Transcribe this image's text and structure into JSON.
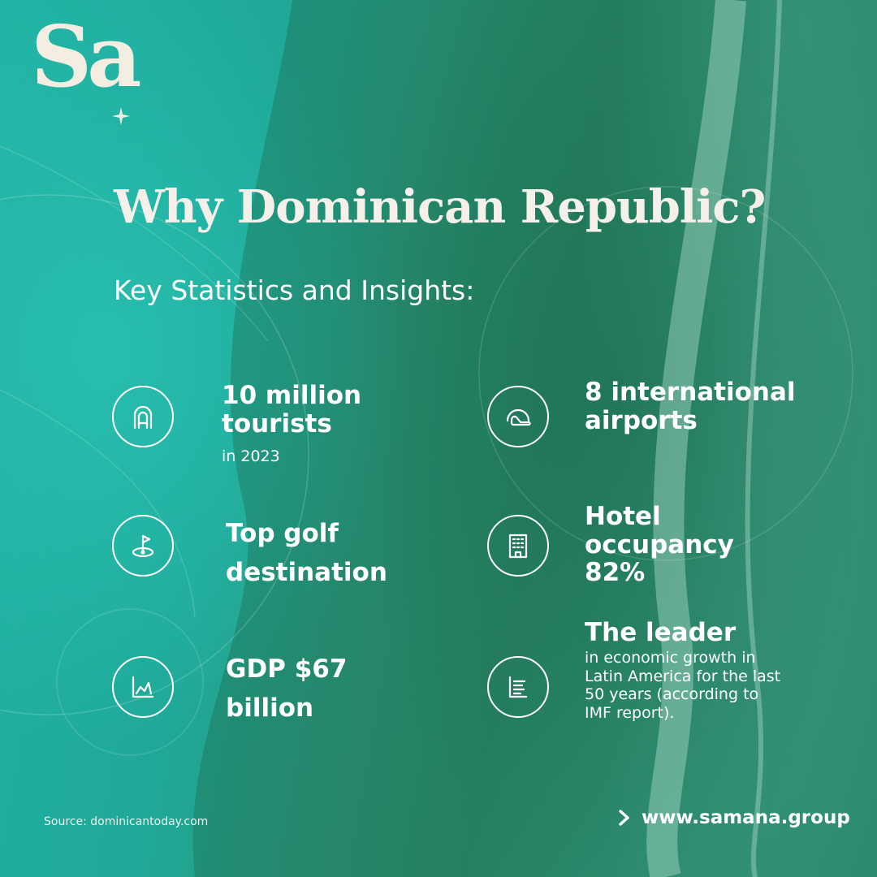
{
  "brand": {
    "logo_text": "Sa",
    "website": "www.samana.group"
  },
  "heading": {
    "title": "Why Dominican Republic?",
    "subtitle": "Key Statistics and Insights:"
  },
  "stats": [
    {
      "icon": "tourist-icon",
      "headline": "10 million tourists",
      "detail": "in 2023"
    },
    {
      "icon": "airplane-icon",
      "headline": "8 international airports"
    },
    {
      "icon": "golf-flag-icon",
      "headline": "Top golf destination"
    },
    {
      "icon": "hotel-building-icon",
      "headline": "Hotel occupancy 82%"
    },
    {
      "icon": "growth-chart-icon",
      "headline": "GDP $67 billion"
    },
    {
      "icon": "report-document-icon",
      "headline": "The leader",
      "detail": "in economic growth in Latin America for the last 50 years (according to IMF report)."
    }
  ],
  "footer": {
    "source": "Source: dominicantoday.com"
  },
  "colors": {
    "teal": "#22b3a4",
    "forest": "#2b8f6f",
    "cream": "#f3ede2",
    "white": "#ffffff"
  }
}
